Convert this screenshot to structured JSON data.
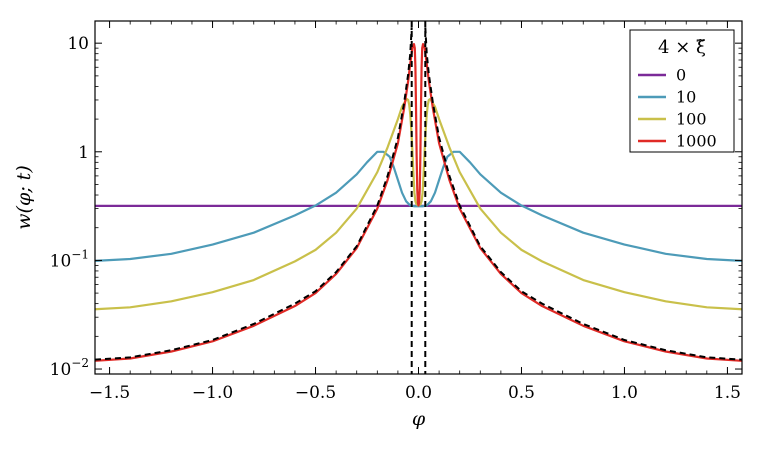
{
  "chart_data": {
    "type": "line",
    "xlabel": "φ",
    "ylabel": "w(φ; t)",
    "xlim": [
      -1.5708,
      1.5708
    ],
    "ylim": [
      0.009,
      16
    ],
    "yscale": "log",
    "xticks": [
      -1.5,
      -1.0,
      -0.5,
      0.0,
      0.5,
      1.0,
      1.5
    ],
    "xtick_labels": [
      "−1.5",
      "−1.0",
      "−0.5",
      "0.0",
      "0.5",
      "1.0",
      "1.5"
    ],
    "yticks": [
      0.01,
      0.1,
      1,
      10
    ],
    "ytick_labels": [
      {
        "base": "10",
        "exp": "−2"
      },
      {
        "base": "10",
        "exp": "−1"
      },
      {
        "base": "1",
        "exp": ""
      },
      {
        "base": "10",
        "exp": ""
      }
    ],
    "legend": {
      "title": "4 × ξ̃",
      "placement": "top-right"
    },
    "series": [
      {
        "name": "0",
        "color": "#7b2a98",
        "x": [
          -1.5708,
          1.5708
        ],
        "y": [
          0.318,
          0.318
        ]
      },
      {
        "name": "10",
        "color": "#4d9bb8",
        "x": [
          -1.5708,
          -1.4,
          -1.2,
          -1.0,
          -0.8,
          -0.6,
          -0.5,
          -0.4,
          -0.3,
          -0.25,
          -0.2,
          -0.17,
          -0.14,
          -0.12,
          -0.1,
          -0.08,
          -0.06,
          -0.04,
          -0.02,
          0.0,
          0.02,
          0.04,
          0.06,
          0.08,
          0.1,
          0.12,
          0.14,
          0.17,
          0.2,
          0.25,
          0.3,
          0.4,
          0.5,
          0.6,
          0.8,
          1.0,
          1.2,
          1.4,
          1.5708
        ],
        "y": [
          0.099,
          0.103,
          0.115,
          0.14,
          0.18,
          0.26,
          0.32,
          0.42,
          0.62,
          0.8,
          1.0,
          1.0,
          0.9,
          0.72,
          0.55,
          0.42,
          0.35,
          0.32,
          0.315,
          0.315,
          0.315,
          0.32,
          0.35,
          0.42,
          0.55,
          0.72,
          0.9,
          1.0,
          1.0,
          0.8,
          0.62,
          0.42,
          0.32,
          0.26,
          0.18,
          0.14,
          0.115,
          0.103,
          0.099
        ]
      },
      {
        "name": "100",
        "color": "#c9c04a",
        "x": [
          -1.5708,
          -1.4,
          -1.2,
          -1.0,
          -0.8,
          -0.6,
          -0.5,
          -0.4,
          -0.3,
          -0.2,
          -0.15,
          -0.1,
          -0.08,
          -0.06,
          -0.055,
          -0.05,
          -0.045,
          -0.04,
          -0.035,
          -0.03,
          -0.025,
          -0.02,
          -0.015,
          -0.01,
          0.0,
          0.01,
          0.015,
          0.02,
          0.025,
          0.03,
          0.035,
          0.04,
          0.045,
          0.05,
          0.055,
          0.06,
          0.08,
          0.1,
          0.15,
          0.2,
          0.3,
          0.4,
          0.5,
          0.6,
          0.8,
          1.0,
          1.2,
          1.4,
          1.5708
        ],
        "y": [
          0.0355,
          0.037,
          0.042,
          0.051,
          0.066,
          0.098,
          0.125,
          0.18,
          0.3,
          0.65,
          1.1,
          2.0,
          2.6,
          3.0,
          3.05,
          3.0,
          2.7,
          2.2,
          1.6,
          1.05,
          0.65,
          0.42,
          0.35,
          0.33,
          0.32,
          0.33,
          0.35,
          0.42,
          0.65,
          1.05,
          1.6,
          2.2,
          2.7,
          3.0,
          3.05,
          3.0,
          2.6,
          2.0,
          1.1,
          0.65,
          0.3,
          0.18,
          0.125,
          0.098,
          0.066,
          0.051,
          0.042,
          0.037,
          0.0355
        ]
      },
      {
        "name": "1000",
        "color": "#e02a26",
        "x": [
          -1.5708,
          -1.4,
          -1.2,
          -1.0,
          -0.8,
          -0.6,
          -0.5,
          -0.4,
          -0.3,
          -0.2,
          -0.15,
          -0.1,
          -0.07,
          -0.05,
          -0.04,
          -0.03,
          -0.022,
          -0.018,
          -0.015,
          -0.012,
          -0.009,
          -0.006,
          -0.003,
          0.0,
          0.003,
          0.006,
          0.009,
          0.012,
          0.015,
          0.018,
          0.022,
          0.03,
          0.04,
          0.05,
          0.07,
          0.1,
          0.15,
          0.2,
          0.3,
          0.4,
          0.5,
          0.6,
          0.8,
          1.0,
          1.2,
          1.4,
          1.5708
        ],
        "y": [
          0.0119,
          0.0125,
          0.0145,
          0.018,
          0.025,
          0.038,
          0.05,
          0.075,
          0.13,
          0.3,
          0.55,
          1.2,
          2.5,
          4.5,
          6.5,
          9.0,
          9.8,
          9.0,
          6.0,
          2.5,
          0.9,
          0.45,
          0.34,
          0.32,
          0.34,
          0.45,
          0.9,
          2.5,
          6.0,
          9.0,
          9.8,
          9.0,
          6.5,
          4.5,
          2.5,
          1.2,
          0.55,
          0.3,
          0.13,
          0.075,
          0.05,
          0.038,
          0.025,
          0.018,
          0.0145,
          0.0125,
          0.0119
        ]
      }
    ],
    "reference_curves": [
      {
        "style": "dashed",
        "color": "#000000",
        "x": [
          -1.5708,
          -1.4,
          -1.2,
          -1.0,
          -0.8,
          -0.6,
          -0.5,
          -0.4,
          -0.3,
          -0.2,
          -0.15,
          -0.1,
          -0.07,
          -0.05,
          -0.04,
          -0.033
        ],
        "y": [
          0.0122,
          0.0128,
          0.0149,
          0.0185,
          0.026,
          0.04,
          0.052,
          0.078,
          0.135,
          0.32,
          0.6,
          1.35,
          2.8,
          5.2,
          8.0,
          14.0
        ]
      },
      {
        "style": "dashed",
        "color": "#000000",
        "x": [
          0.033,
          0.04,
          0.05,
          0.07,
          0.1,
          0.15,
          0.2,
          0.3,
          0.4,
          0.5,
          0.6,
          0.8,
          1.0,
          1.2,
          1.4,
          1.5708
        ],
        "y": [
          14.0,
          8.0,
          5.2,
          2.8,
          1.35,
          0.6,
          0.32,
          0.135,
          0.078,
          0.052,
          0.04,
          0.026,
          0.0185,
          0.0149,
          0.0128,
          0.0122
        ]
      }
    ],
    "vertical_lines": [
      {
        "x": -0.033,
        "style": "dashed",
        "color": "#000000"
      },
      {
        "x": 0.033,
        "style": "dashed",
        "color": "#000000"
      }
    ]
  }
}
